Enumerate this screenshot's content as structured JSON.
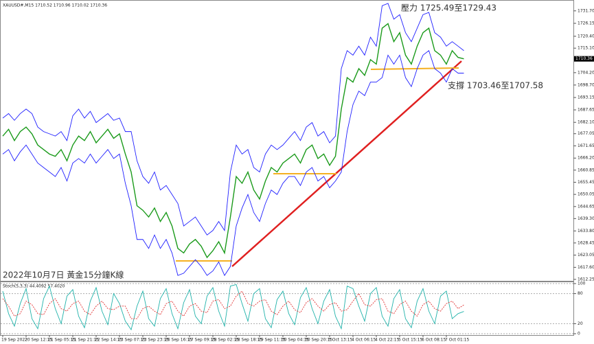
{
  "chart_data": [
    {
      "type": "line",
      "title": "XAUUSD#,M15  1710.52 1710.96 1710.02 1710.36",
      "annotations": [
        "壓力 1725.49至1729.43",
        "支撐 1703.46至1707.58",
        "2022年10月7日 黃金15分鐘K線"
      ],
      "price_label": "1710.36",
      "categories": [
        "19 Sep 2022",
        null,
        null,
        null,
        "20 Sep 12:15",
        null,
        null,
        null,
        "21 Sep 05:15",
        null,
        null,
        null,
        "21 Sep 21:15",
        null,
        null,
        null,
        "22 Sep 14:15",
        null,
        null,
        null,
        "23 Sep 07:15",
        null,
        null,
        null,
        "23 Sep 23:15",
        null,
        null,
        null,
        "26 Sep 16:15",
        null,
        null,
        null,
        "27 Sep 09:15",
        null,
        null,
        null,
        "28 Sep 02:15",
        null,
        null,
        null,
        "28 Sep 18:15",
        null,
        null,
        null,
        "29 Sep 11:15",
        null,
        null,
        null,
        "30 Sep 04:15",
        null,
        null,
        null,
        "30 Sep 20:15",
        null,
        null,
        null,
        "3 Oct 13:15",
        null,
        null,
        null,
        "4 Oct 06:15",
        null,
        null,
        null,
        "4 Oct 22:15",
        null,
        null,
        null,
        "5 Oct 15:15",
        null,
        null,
        null,
        "6 Oct 08:15",
        null,
        null,
        null,
        "7 Oct 01:15",
        null,
        null,
        null
      ],
      "series": [
        {
          "name": "Upper",
          "color": "#1f1fff",
          "values": [
            1684,
            1686,
            1683,
            1686,
            1688,
            1686,
            1680,
            1678,
            1677,
            1676,
            1678,
            1674,
            1685,
            1688,
            1684,
            1687,
            1682,
            1684,
            1686,
            1683,
            1684,
            1678,
            1678,
            1665,
            1658,
            1655,
            1660,
            1652,
            1654,
            1650,
            1646,
            1636,
            1638,
            1640,
            1636,
            1632,
            1634,
            1638,
            1634,
            1660,
            1672,
            1668,
            1670,
            1662,
            1660,
            1668,
            1672,
            1670,
            1672,
            1675,
            1678,
            1674,
            1680,
            1682,
            1676,
            1678,
            1673,
            1676,
            1706,
            1714,
            1712,
            1716,
            1712,
            1720,
            1716,
            1734,
            1735,
            1728,
            1730,
            1722,
            1718,
            1724,
            1730,
            1731,
            1722,
            1720,
            1716,
            1718,
            1716,
            1714
          ]
        },
        {
          "name": "Close",
          "color": "#1a9a1a",
          "values": [
            1676,
            1679,
            1674,
            1678,
            1680,
            1677,
            1672,
            1670,
            1668,
            1667,
            1670,
            1665,
            1672,
            1676,
            1674,
            1678,
            1673,
            1676,
            1679,
            1675,
            1677,
            1668,
            1660,
            1645,
            1643,
            1640,
            1644,
            1638,
            1642,
            1636,
            1626,
            1624,
            1628,
            1630,
            1627,
            1622,
            1625,
            1629,
            1624,
            1640,
            1658,
            1655,
            1660,
            1652,
            1648,
            1656,
            1662,
            1660,
            1664,
            1666,
            1668,
            1664,
            1670,
            1672,
            1666,
            1668,
            1663,
            1667,
            1688,
            1702,
            1700,
            1706,
            1703,
            1710,
            1708,
            1724,
            1726,
            1718,
            1722,
            1712,
            1708,
            1716,
            1722,
            1724,
            1714,
            1712,
            1708,
            1714,
            1711,
            1710.36
          ]
        },
        {
          "name": "Lower",
          "color": "#1f1fff",
          "values": [
            1668,
            1670,
            1665,
            1669,
            1672,
            1668,
            1664,
            1662,
            1660,
            1658,
            1662,
            1656,
            1664,
            1666,
            1664,
            1668,
            1664,
            1667,
            1670,
            1666,
            1668,
            1655,
            1645,
            1630,
            1630,
            1626,
            1632,
            1626,
            1630,
            1624,
            1614,
            1615,
            1618,
            1621,
            1618,
            1614,
            1616,
            1620,
            1614,
            1618,
            1636,
            1644,
            1650,
            1642,
            1638,
            1646,
            1652,
            1650,
            1655,
            1658,
            1658,
            1654,
            1660,
            1662,
            1656,
            1658,
            1653,
            1656,
            1660,
            1678,
            1690,
            1696,
            1694,
            1700,
            1700,
            1702,
            1712,
            1708,
            1712,
            1702,
            1698,
            1706,
            1712,
            1714,
            1706,
            1704,
            1700,
            1706,
            1704,
            1704
          ]
        }
      ],
      "ylim": [
        1611.6,
        1735.0
      ],
      "yticks": [
        {
          "value": 1731.7,
          "label": "1731.70"
        },
        1726.15,
        {
          "value": 1720.4,
          "label": "1720.40"
        },
        {
          "value": 1715.1,
          "label": "1715.10"
        },
        {
          "value": 1704.2,
          "label": "1704.20"
        },
        {
          "value": 1698.7,
          "label": "1698.70"
        },
        1693.15,
        1687.65,
        {
          "value": 1682.1,
          "label": "1682.10"
        },
        1677.05,
        1671.65,
        {
          "value": 1666.2,
          "label": "1666.20"
        },
        1660.85,
        1655.45,
        1650.05,
        1644.65,
        {
          "value": 1639.3,
          "label": "1639.30"
        },
        {
          "value": 1633.8,
          "label": "1633.80"
        },
        1628.45,
        1623.05,
        {
          "value": 1617.6,
          "label": "1617.60"
        },
        1612.25
      ]
    },
    {
      "type": "line",
      "title": "Stoch(5,3,3) 44.4092 57.4020",
      "series": [
        {
          "name": "%K",
          "color": "#20b2aa",
          "values": [
            85,
            40,
            15,
            60,
            90,
            30,
            10,
            70,
            95,
            50,
            20,
            75,
            88,
            35,
            12,
            65,
            92,
            45,
            18,
            80,
            60,
            25,
            8,
            55,
            85,
            30,
            15,
            70,
            90,
            40,
            10,
            62,
            88,
            35,
            20,
            75,
            92,
            45,
            15,
            95,
            98,
            60,
            25,
            80,
            90,
            30,
            12,
            68,
            85,
            40,
            18,
            72,
            92,
            50,
            20,
            65,
            88,
            35,
            10,
            95,
            90,
            55,
            25,
            80,
            92,
            35,
            15,
            70,
            88,
            30,
            12,
            65,
            90,
            45,
            20,
            75,
            85,
            30,
            40,
            44.41
          ]
        },
        {
          "name": "%D",
          "color": "#e03030",
          "values": [
            70,
            55,
            35,
            40,
            65,
            58,
            40,
            38,
            60,
            70,
            50,
            45,
            60,
            65,
            45,
            38,
            55,
            65,
            50,
            48,
            55,
            55,
            30,
            30,
            50,
            55,
            45,
            38,
            60,
            65,
            45,
            35,
            55,
            60,
            45,
            42,
            65,
            68,
            50,
            55,
            75,
            85,
            60,
            55,
            65,
            68,
            45,
            38,
            55,
            65,
            48,
            42,
            62,
            70,
            55,
            45,
            58,
            62,
            45,
            48,
            65,
            80,
            58,
            55,
            68,
            70,
            45,
            40,
            58,
            65,
            45,
            35,
            58,
            65,
            50,
            45,
            60,
            65,
            50,
            57.4
          ]
        }
      ],
      "ylim": [
        0,
        100
      ],
      "yticks": [
        100,
        80,
        20,
        0
      ]
    }
  ]
}
